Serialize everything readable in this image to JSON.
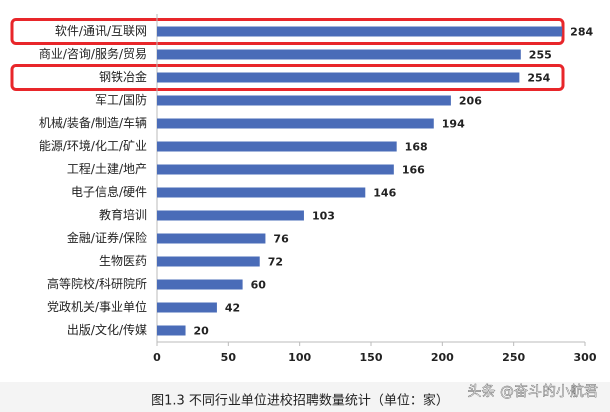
{
  "chart_data": {
    "type": "bar",
    "orientation": "horizontal",
    "categories": [
      "软件/通讯/互联网",
      "商业/咨询/服务/贸易",
      "钢铁冶金",
      "军工/国防",
      "机械/装备/制造/车辆",
      "能源/环境/化工/矿业",
      "工程/土建/地产",
      "电子信息/硬件",
      "教育培训",
      "金融/证券/保险",
      "生物医药",
      "高等院校/科研院所",
      "党政机关/事业单位",
      "出版/文化/传媒"
    ],
    "values": [
      284,
      255,
      254,
      206,
      194,
      168,
      166,
      146,
      103,
      76,
      72,
      60,
      42,
      20
    ],
    "color": "#4a6cb8",
    "xlim": [
      0,
      300
    ],
    "xticks": [
      0,
      50,
      100,
      150,
      200,
      250,
      300
    ],
    "highlight": [
      0,
      2
    ],
    "highlight_color": "#e8262a",
    "caption": "图1.3  不同行业单位进校招聘数量统计（单位：家）",
    "watermark": "头条 @奋斗的小航君"
  }
}
